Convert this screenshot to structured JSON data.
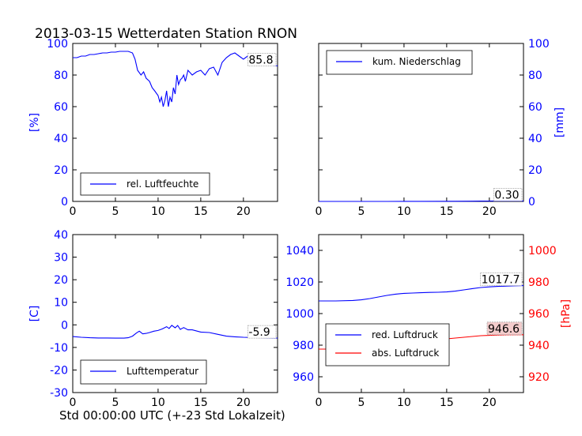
{
  "figure": {
    "title": "2013-03-15 Wetterdaten Station RNON",
    "xlabel": "Std 00:00:00 UTC (+-23 Std Lokalzeit)"
  },
  "chart_data": [
    {
      "type": "line",
      "panel": "top-left",
      "xlim": [
        0,
        24
      ],
      "xticks": [
        0,
        5,
        10,
        15,
        20
      ],
      "ylim": [
        0,
        100
      ],
      "yticks": [
        0,
        20,
        40,
        60,
        80,
        100
      ],
      "ylabel": "[%]",
      "ylabel_color": "#0000ff",
      "tick_color": "#0000ff",
      "last_value_label": "85.8",
      "legend_position": "lower-left",
      "series": [
        {
          "name": "rel. Luftfeuchte",
          "color": "#0000ff",
          "x": [
            0,
            0.5,
            1,
            1.5,
            2,
            2.5,
            3,
            3.5,
            4,
            4.5,
            5,
            5.5,
            6,
            6.5,
            7,
            7.3,
            7.6,
            8,
            8.3,
            8.6,
            9,
            9.3,
            9.6,
            10,
            10.2,
            10.4,
            10.6,
            10.8,
            11,
            11.2,
            11.4,
            11.6,
            11.8,
            12,
            12.2,
            12.4,
            12.6,
            12.8,
            13,
            13.2,
            13.5,
            14,
            14.5,
            15,
            15.5,
            16,
            16.5,
            17,
            17.5,
            18,
            18.5,
            19,
            19.5,
            20,
            20.5,
            21,
            21.5,
            22,
            22.5,
            23,
            23.5,
            24
          ],
          "values": [
            91,
            91,
            92,
            92,
            93,
            93,
            93.5,
            94,
            94,
            94.5,
            94.5,
            95,
            95,
            95,
            94,
            90,
            83,
            80,
            82,
            78,
            76,
            72,
            70,
            67,
            63,
            66,
            60,
            64,
            70,
            60,
            66,
            63,
            72,
            68,
            80,
            74,
            77,
            78,
            80,
            76,
            83,
            80,
            82,
            83,
            80,
            84,
            85,
            80,
            88,
            91,
            93,
            94,
            92,
            90,
            92,
            93,
            91,
            89,
            88,
            87,
            86,
            85.8
          ]
        }
      ]
    },
    {
      "type": "line",
      "panel": "top-right",
      "xlim": [
        0,
        24
      ],
      "xticks": [
        0,
        5,
        10,
        15,
        20
      ],
      "ylim": [
        0,
        100
      ],
      "yticks": [
        0,
        20,
        40,
        60,
        80,
        100
      ],
      "ylabel": "[mm]",
      "ylabel_color": "#0000ff",
      "tick_color": "#0000ff",
      "yaxis_side": "right",
      "last_value_label": "0.30",
      "legend_position": "upper-left",
      "series": [
        {
          "name": "kum. Niederschlag",
          "color": "#0000ff",
          "x": [
            0,
            4,
            8,
            12,
            16,
            18,
            19,
            20,
            21,
            22,
            24
          ],
          "values": [
            0,
            0,
            0,
            0.05,
            0.1,
            0.15,
            0.2,
            0.25,
            0.28,
            0.3,
            0.3
          ]
        }
      ]
    },
    {
      "type": "line",
      "panel": "bottom-left",
      "xlim": [
        0,
        24
      ],
      "xticks": [
        0,
        5,
        10,
        15,
        20
      ],
      "ylim": [
        -30,
        40
      ],
      "yticks": [
        -30,
        -20,
        -10,
        0,
        10,
        20,
        30,
        40
      ],
      "ylabel": "[C]",
      "ylabel_color": "#0000ff",
      "tick_color": "#0000ff",
      "last_value_label": "-5.9",
      "legend_position": "lower-left",
      "series": [
        {
          "name": "Lufttemperatur",
          "color": "#0000ff",
          "x": [
            0,
            1,
            2,
            3,
            4,
            5,
            6,
            6.5,
            7,
            7.5,
            7.8,
            8.2,
            8.6,
            9,
            9.5,
            10,
            10.5,
            11,
            11.3,
            11.6,
            12,
            12.3,
            12.6,
            13,
            13.5,
            14,
            15,
            16,
            17,
            18,
            19,
            20,
            21,
            22,
            23,
            24
          ],
          "values": [
            -5.2,
            -5.5,
            -5.7,
            -5.8,
            -5.8,
            -5.9,
            -5.9,
            -5.7,
            -5,
            -3.5,
            -2.8,
            -4,
            -3.8,
            -3.4,
            -2.8,
            -2.5,
            -1.8,
            -0.8,
            -1.6,
            -0.2,
            -1.3,
            -0.3,
            -2,
            -1.2,
            -2.2,
            -2.2,
            -3.2,
            -3.4,
            -4.2,
            -5,
            -5.3,
            -5.5,
            -5.6,
            -5.7,
            -5.8,
            -5.9
          ]
        }
      ]
    },
    {
      "type": "line",
      "panel": "bottom-right",
      "xlim": [
        0,
        24
      ],
      "xticks": [
        0,
        5,
        10,
        15,
        20
      ],
      "ylim": [
        950,
        1050
      ],
      "yticks": [
        960,
        980,
        1000,
        1020,
        1040
      ],
      "ylim_right": [
        910,
        1010
      ],
      "yticks_right": [
        920,
        940,
        960,
        980,
        1000
      ],
      "ylabel_right": "[hPa]",
      "tick_color": "#0000ff",
      "tick_color_right": "#ff0000",
      "legend_position": "lower-left",
      "series": [
        {
          "name": "red. Luftdruck",
          "color": "#0000ff",
          "axis": "left",
          "label": "1017.7",
          "label_bg": "#ffffff",
          "x": [
            0,
            2,
            4,
            5,
            6,
            7,
            8,
            9,
            10,
            11,
            12,
            13,
            14,
            15,
            16,
            17,
            18,
            19,
            20,
            21,
            22,
            23,
            24
          ],
          "values": [
            1008,
            1008,
            1008.3,
            1008.7,
            1009.5,
            1010.5,
            1011.5,
            1012.3,
            1012.8,
            1013,
            1013.2,
            1013.4,
            1013.5,
            1013.7,
            1014.2,
            1015,
            1015.8,
            1016.5,
            1016.9,
            1017.2,
            1017.4,
            1017.6,
            1017.7
          ]
        },
        {
          "name": "abs. Luftdruck",
          "color": "#ff0000",
          "axis": "right",
          "label": "946.6",
          "label_bg": "#f4cccc",
          "x": [
            0,
            2,
            4,
            5,
            6,
            7,
            8,
            9,
            10,
            11,
            12,
            13,
            14,
            15,
            16,
            17,
            18,
            19,
            20,
            21,
            22,
            23,
            24
          ],
          "values": [
            937.5,
            937.5,
            937.7,
            938,
            938.8,
            939.8,
            940.8,
            941.8,
            942.5,
            943,
            943.3,
            943.5,
            943.7,
            944,
            944.5,
            945,
            945.5,
            946,
            946.2,
            946.4,
            946.5,
            946.6,
            946.6
          ]
        }
      ]
    }
  ]
}
